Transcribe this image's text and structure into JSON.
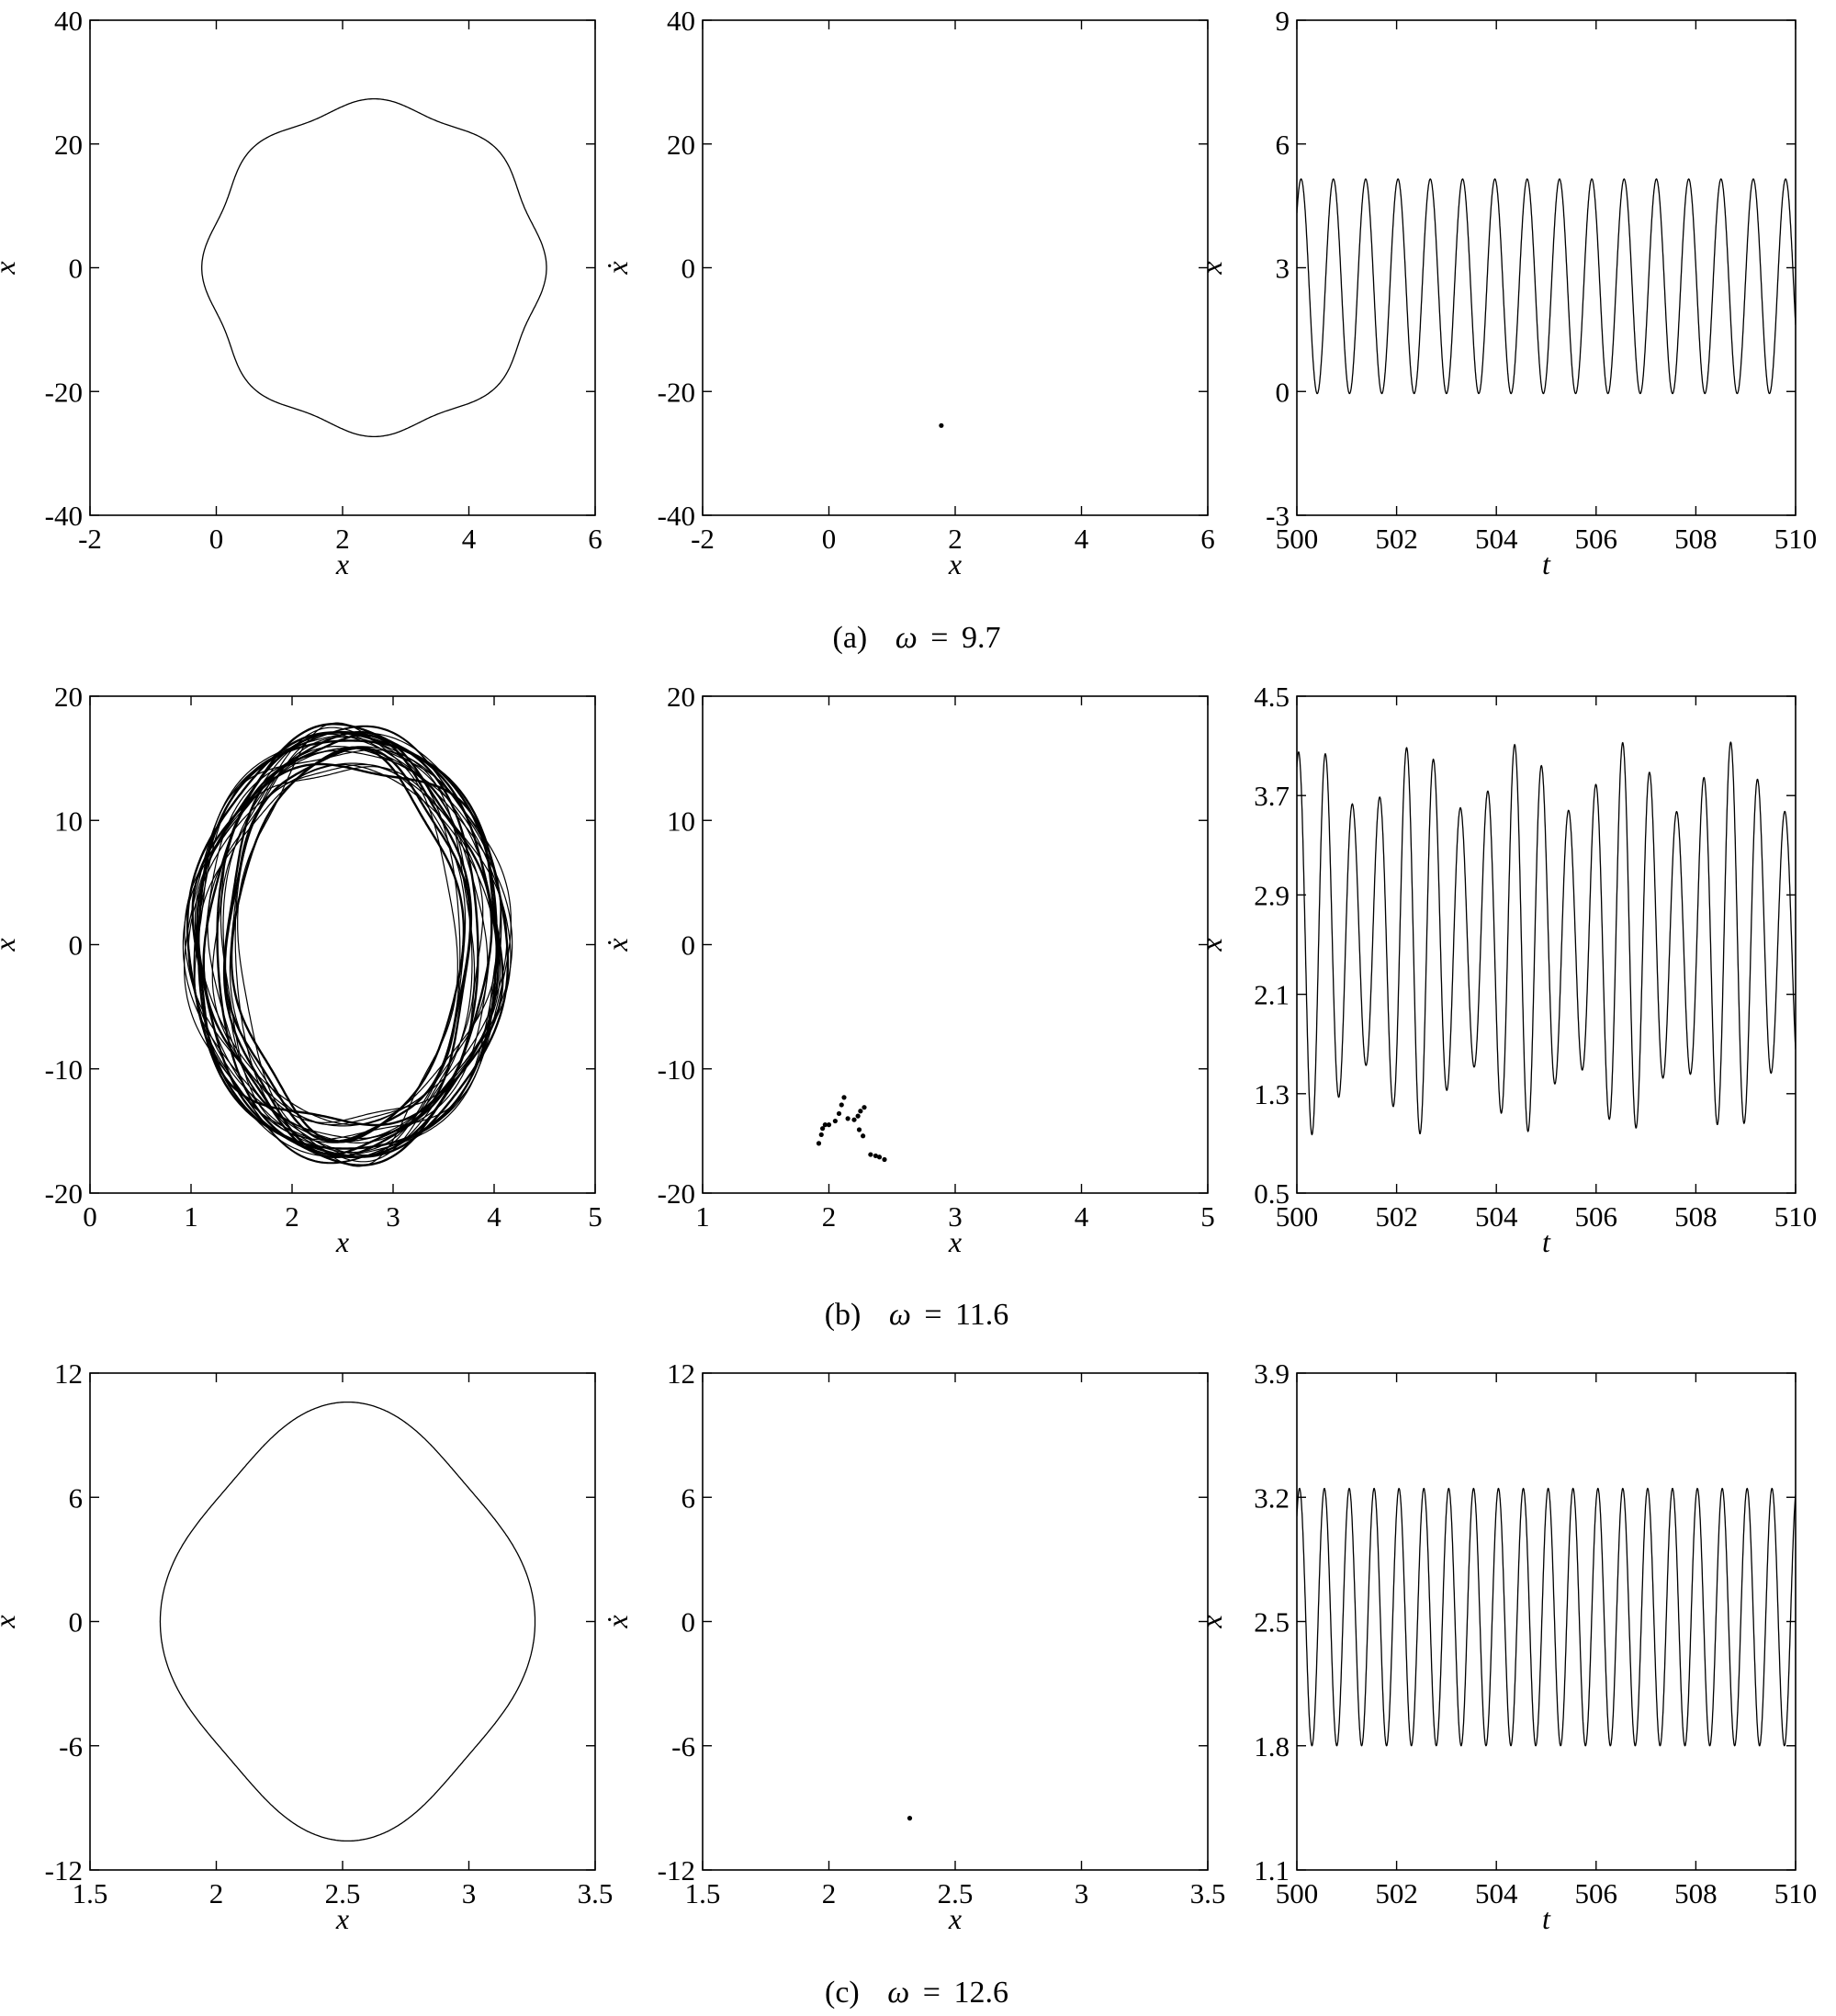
{
  "figure": {
    "rows": [
      {
        "caption": {
          "letter": "(a)",
          "omega_symbol": "ω",
          "equals": "=",
          "omega_value": "9.7"
        },
        "panels": [
          {
            "kind": "phase"
          },
          {
            "kind": "poincare"
          },
          {
            "kind": "time"
          }
        ]
      },
      {
        "caption": {
          "letter": "(b)",
          "omega_symbol": "ω",
          "equals": "=",
          "omega_value": "11.6"
        },
        "panels": [
          {
            "kind": "phase"
          },
          {
            "kind": "poincare"
          },
          {
            "kind": "time"
          }
        ]
      },
      {
        "caption": {
          "letter": "(c)",
          "omega_symbol": "ω",
          "equals": "=",
          "omega_value": "12.6"
        },
        "panels": [
          {
            "kind": "phase"
          },
          {
            "kind": "poincare"
          },
          {
            "kind": "time"
          }
        ]
      }
    ]
  },
  "chart_data": [
    {
      "id": "a-phase",
      "type": "line",
      "xlabel": "x",
      "ylabel": "ẋ",
      "xlim": [
        -2,
        6
      ],
      "ylim": [
        -40,
        40
      ],
      "xticks": [
        "-2",
        "0",
        "2",
        "4",
        "6"
      ],
      "yticks": [
        "-40",
        "-20",
        "0",
        "20",
        "40"
      ],
      "curve": {
        "cx": 2.5,
        "cy": 0,
        "rx": 2.65,
        "ry": 26.5,
        "bumps": 0.03,
        "bump_n": 8
      }
    },
    {
      "id": "a-poincare",
      "type": "scatter",
      "xlabel": "x",
      "ylabel": "ẋ",
      "xlim": [
        -2,
        6
      ],
      "ylim": [
        -40,
        40
      ],
      "xticks": [
        "-2",
        "0",
        "2",
        "4",
        "6"
      ],
      "yticks": [
        "-40",
        "-20",
        "0",
        "20",
        "40"
      ],
      "points": [
        [
          1.78,
          -25.5
        ]
      ]
    },
    {
      "id": "a-time",
      "type": "line",
      "xlabel": "t",
      "ylabel": "x",
      "xlim": [
        500,
        510
      ],
      "ylim": [
        -3,
        9
      ],
      "xticks": [
        "500",
        "502",
        "504",
        "506",
        "508",
        "510"
      ],
      "yticks": [
        "-3",
        "0",
        "3",
        "6",
        "9"
      ],
      "signal": {
        "mean": 2.55,
        "amp": 2.6,
        "period": 0.6477,
        "phase": 0.75,
        "mod_amp": 0,
        "mod_period": 1
      }
    },
    {
      "id": "b-phase",
      "type": "line",
      "xlabel": "x",
      "ylabel": "ẋ",
      "xlim": [
        0,
        5
      ],
      "ylim": [
        -20,
        20
      ],
      "xticks": [
        "0",
        "1",
        "2",
        "3",
        "4",
        "5"
      ],
      "yticks": [
        "-20",
        "-10",
        "0",
        "10",
        "20"
      ],
      "band": {
        "cx": 2.55,
        "cy": 0,
        "rx_min": 1.05,
        "rx_max": 1.58,
        "ry_min": 14.0,
        "ry_max": 17.4,
        "loops": 26
      }
    },
    {
      "id": "b-poincare",
      "type": "scatter",
      "xlabel": "x",
      "ylabel": "ẋ",
      "xlim": [
        1,
        5
      ],
      "ylim": [
        -20,
        20
      ],
      "xticks": [
        "1",
        "2",
        "3",
        "4",
        "5"
      ],
      "yticks": [
        "-20",
        "-10",
        "0",
        "10",
        "20"
      ],
      "points": [
        [
          1.92,
          -16.0
        ],
        [
          1.94,
          -15.3
        ],
        [
          1.95,
          -14.8
        ],
        [
          1.97,
          -14.5
        ],
        [
          2.0,
          -14.5
        ],
        [
          2.05,
          -14.2
        ],
        [
          2.08,
          -13.6
        ],
        [
          2.1,
          -12.9
        ],
        [
          2.12,
          -12.3
        ],
        [
          2.15,
          -14.0
        ],
        [
          2.2,
          -14.1
        ],
        [
          2.23,
          -13.8
        ],
        [
          2.25,
          -13.4
        ],
        [
          2.28,
          -13.1
        ],
        [
          2.24,
          -14.9
        ],
        [
          2.27,
          -15.4
        ],
        [
          2.33,
          -16.9
        ],
        [
          2.37,
          -17.0
        ],
        [
          2.4,
          -17.1
        ],
        [
          2.44,
          -17.3
        ]
      ]
    },
    {
      "id": "b-time",
      "type": "line",
      "xlabel": "t",
      "ylabel": "x",
      "xlim": [
        500,
        510
      ],
      "ylim": [
        0.5,
        4.5
      ],
      "xticks": [
        "500",
        "502",
        "504",
        "506",
        "508",
        "510"
      ],
      "yticks": [
        "0.5",
        "1.3",
        "2.1",
        "2.9",
        "3.7",
        "4.5"
      ],
      "signal": {
        "mean": 2.55,
        "amp": 1.3,
        "period": 0.5417,
        "phase": 1.2,
        "mod_amp": 0.28,
        "mod_period": 2.1
      }
    },
    {
      "id": "c-phase",
      "type": "line",
      "xlabel": "x",
      "ylabel": "ẋ",
      "xlim": [
        1.5,
        3.5
      ],
      "ylim": [
        -12,
        12
      ],
      "xticks": [
        "1.5",
        "2",
        "2.5",
        "3",
        "3.5"
      ],
      "yticks": [
        "-12",
        "-6",
        "0",
        "6",
        "12"
      ],
      "curve": {
        "cx": 2.52,
        "cy": 0,
        "rx": 0.7,
        "ry": 10.0,
        "bumps": 0.06,
        "bump_n": 4
      }
    },
    {
      "id": "c-poincare",
      "type": "scatter",
      "xlabel": "x",
      "ylabel": "ẋ",
      "xlim": [
        1.5,
        3.5
      ],
      "ylim": [
        -12,
        12
      ],
      "xticks": [
        "1.5",
        "2",
        "2.5",
        "3",
        "3.5"
      ],
      "yticks": [
        "-12",
        "-6",
        "0",
        "6",
        "12"
      ],
      "points": [
        [
          2.32,
          -9.5
        ]
      ]
    },
    {
      "id": "c-time",
      "type": "line",
      "xlabel": "t",
      "ylabel": "x",
      "xlim": [
        500,
        510
      ],
      "ylim": [
        1.1,
        3.9
      ],
      "xticks": [
        "500",
        "502",
        "504",
        "506",
        "508",
        "510"
      ],
      "yticks": [
        "1.1",
        "1.8",
        "2.5",
        "3.2",
        "3.9"
      ],
      "signal": {
        "mean": 2.525,
        "amp": 0.725,
        "period": 0.4986,
        "phase": 0.9,
        "mod_amp": 0,
        "mod_period": 1
      }
    }
  ]
}
